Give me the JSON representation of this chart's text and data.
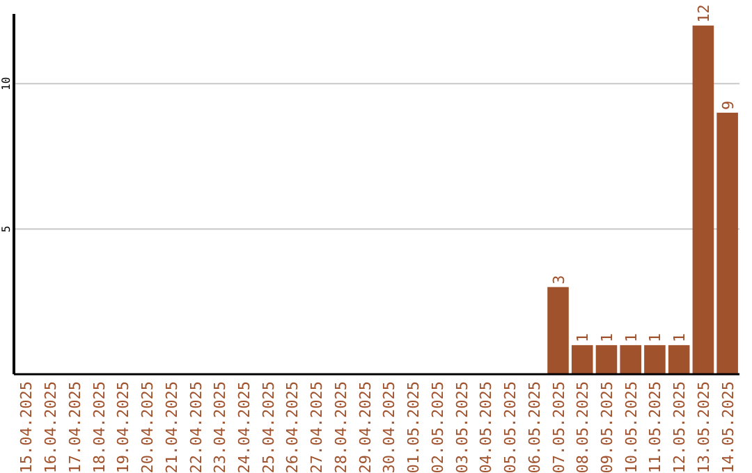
{
  "chart_data": {
    "type": "bar",
    "categories": [
      "15.04.2025",
      "16.04.2025",
      "17.04.2025",
      "18.04.2025",
      "19.04.2025",
      "20.04.2025",
      "21.04.2025",
      "22.04.2025",
      "23.04.2025",
      "24.04.2025",
      "25.04.2025",
      "26.04.2025",
      "27.04.2025",
      "28.04.2025",
      "29.04.2025",
      "30.04.2025",
      "01.05.2025",
      "02.05.2025",
      "03.05.2025",
      "04.05.2025",
      "05.05.2025",
      "06.05.2025",
      "07.05.2025",
      "08.05.2025",
      "09.05.2025",
      "10.05.2025",
      "11.05.2025",
      "12.05.2025",
      "13.05.2025",
      "14.05.2025"
    ],
    "values": [
      0,
      0,
      0,
      0,
      0,
      0,
      0,
      0,
      0,
      0,
      0,
      0,
      0,
      0,
      0,
      0,
      0,
      0,
      0,
      0,
      0,
      0,
      3,
      1,
      1,
      1,
      1,
      1,
      12,
      9
    ],
    "value_labels": [
      null,
      null,
      null,
      null,
      null,
      null,
      null,
      null,
      null,
      null,
      null,
      null,
      null,
      null,
      null,
      null,
      null,
      null,
      null,
      null,
      null,
      null,
      "3",
      "1",
      "1",
      "1",
      "1",
      "1",
      "12",
      "9"
    ],
    "color": "#a0522d",
    "ylim": [
      0,
      12.4
    ],
    "yticks": [
      5,
      10
    ],
    "grid": "y"
  }
}
